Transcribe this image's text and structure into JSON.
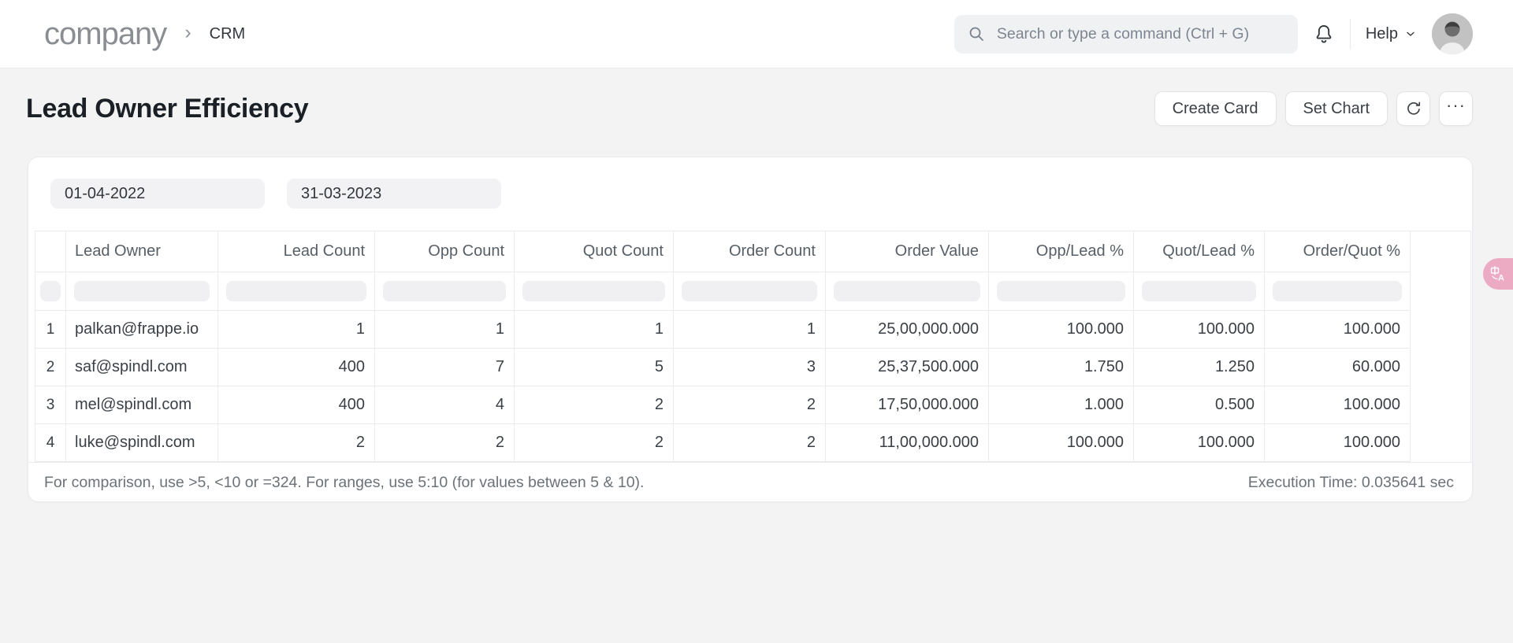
{
  "header": {
    "logo": "company",
    "breadcrumb_separator": "›",
    "breadcrumb": "CRM",
    "search_placeholder": "Search or type a command (Ctrl + G)",
    "help_label": "Help"
  },
  "page": {
    "title": "Lead Owner Efficiency",
    "create_card_label": "Create Card",
    "set_chart_label": "Set Chart",
    "more_glyph": "···"
  },
  "filters": {
    "from_date": "01-04-2022",
    "to_date": "31-03-2023"
  },
  "table": {
    "columns": [
      "Lead Owner",
      "Lead Count",
      "Opp Count",
      "Quot Count",
      "Order Count",
      "Order Value",
      "Opp/Lead %",
      "Quot/Lead %",
      "Order/Quot %"
    ],
    "rows": [
      [
        "1",
        "palkan@frappe.io",
        "1",
        "1",
        "1",
        "1",
        "25,00,000.000",
        "100.000",
        "100.000",
        "100.000"
      ],
      [
        "2",
        "saf@spindl.com",
        "400",
        "7",
        "5",
        "3",
        "25,37,500.000",
        "1.750",
        "1.250",
        "60.000"
      ],
      [
        "3",
        "mel@spindl.com",
        "400",
        "4",
        "2",
        "2",
        "17,50,000.000",
        "1.000",
        "0.500",
        "100.000"
      ],
      [
        "4",
        "luke@spindl.com",
        "2",
        "2",
        "2",
        "2",
        "11,00,000.000",
        "100.000",
        "100.000",
        "100.000"
      ]
    ]
  },
  "footer": {
    "hint": "For comparison, use >5, <10 or =324. For ranges, use 5:10 (for values between 5 & 10).",
    "execution_time": "Execution Time: 0.035641 sec"
  },
  "colors": {
    "page_background": "#f3f3f4",
    "card_background": "#ffffff",
    "border": "#ebebed",
    "text_dark": "#1b2026",
    "text_muted": "#6c7278",
    "input_background": "#f2f2f4",
    "translate_badge": "#edaac3"
  }
}
